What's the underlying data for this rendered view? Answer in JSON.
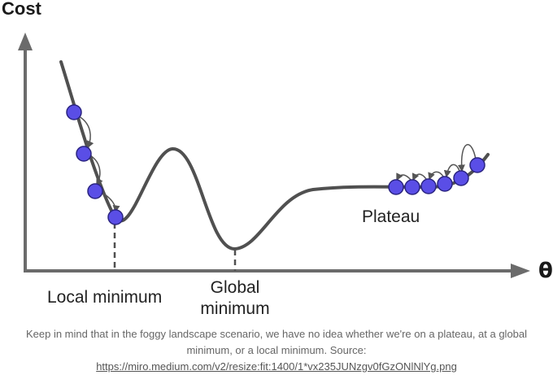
{
  "diagram": {
    "y_axis_label": "Cost",
    "x_axis_label": "θ",
    "labels": {
      "local_minimum": "Local minimum",
      "global_minimum_line1": "Global",
      "global_minimum_line2": "minimum",
      "plateau": "Plateau"
    },
    "colors": {
      "curve": "#505050",
      "axis": "#6b6b6b",
      "ball_fill": "#5a4ee6",
      "ball_stroke": "#2a2480"
    }
  },
  "caption": {
    "text": "Keep in mind that in the foggy landscape scenario, we have no idea whether we're on a plateau, at a global minimum, or a local minimum. Source:",
    "link": "https://miro.medium.com/v2/resize:fit:1400/1*vx235JUNzgv0fGzONlNlYg.png"
  }
}
